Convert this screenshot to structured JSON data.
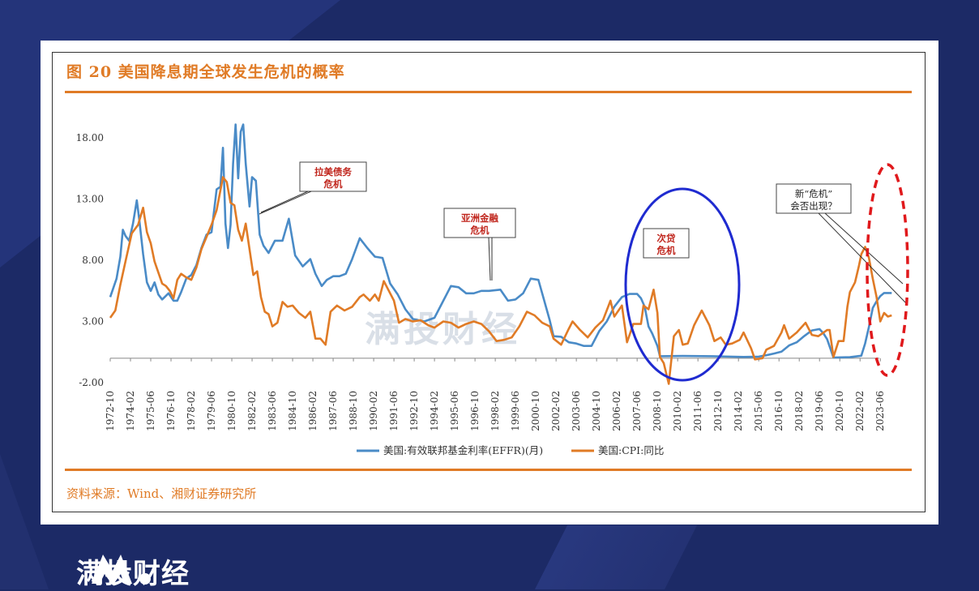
{
  "figure": {
    "title": "图 20 美国降息期全球发生危机的概率",
    "source": "资料来源：Wind、湘财证券研究所",
    "watermark": "满投财经"
  },
  "brand": {
    "name": "满投财经"
  },
  "colors": {
    "effr": "#4a8bc7",
    "cpi": "#e07b26",
    "accent": "#e07b26",
    "circle": "#1f2bd0",
    "dashed": "#e0191c"
  },
  "chart_data": {
    "type": "line",
    "title": "图 20 美国降息期全球发生危机的概率",
    "ylim": [
      -2,
      20
    ],
    "yticks": [
      "18.00",
      "13.00",
      "8.00",
      "3.00",
      "-2.00"
    ],
    "x_tick_labels": [
      "1972-10",
      "1974-02",
      "1975-06",
      "1976-10",
      "1978-02",
      "1979-06",
      "1980-10",
      "1982-02",
      "1983-06",
      "1984-10",
      "1986-02",
      "1987-06",
      "1988-10",
      "1990-02",
      "1991-06",
      "1992-10",
      "1994-02",
      "1995-06",
      "1996-10",
      "1998-02",
      "1999-06",
      "2000-10",
      "2002-02",
      "2003-06",
      "2004-10",
      "2006-02",
      "2007-06",
      "2008-10",
      "2010-02",
      "2011-06",
      "2012-10",
      "2014-02",
      "2015-06",
      "2016-10",
      "2018-02",
      "2019-06",
      "2020-10",
      "2022-02",
      "2023-06"
    ],
    "x_range": [
      "1972-10",
      "2024-06"
    ],
    "series": [
      {
        "name": "美国:有效联邦基金利率(EFFR)(月)",
        "color": "#4a8bc7",
        "points": [
          [
            "1972-10",
            5.0
          ],
          [
            "1973-03",
            6.5
          ],
          [
            "1973-06",
            8.3
          ],
          [
            "1973-08",
            10.5
          ],
          [
            "1973-10",
            10.0
          ],
          [
            "1974-01",
            9.6
          ],
          [
            "1974-04",
            11.0
          ],
          [
            "1974-07",
            12.9
          ],
          [
            "1974-09",
            11.3
          ],
          [
            "1974-12",
            8.5
          ],
          [
            "1975-03",
            6.2
          ],
          [
            "1975-06",
            5.5
          ],
          [
            "1975-09",
            6.2
          ],
          [
            "1975-12",
            5.2
          ],
          [
            "1976-03",
            4.8
          ],
          [
            "1976-08",
            5.3
          ],
          [
            "1976-12",
            4.7
          ],
          [
            "1977-03",
            4.7
          ],
          [
            "1977-06",
            5.4
          ],
          [
            "1977-10",
            6.5
          ],
          [
            "1978-02",
            6.8
          ],
          [
            "1978-06",
            7.6
          ],
          [
            "1978-10",
            9.0
          ],
          [
            "1979-02",
            10.1
          ],
          [
            "1979-06",
            10.3
          ],
          [
            "1979-10",
            13.8
          ],
          [
            "1980-01",
            14.0
          ],
          [
            "1980-03",
            17.2
          ],
          [
            "1980-05",
            11.0
          ],
          [
            "1980-07",
            9.0
          ],
          [
            "1980-09",
            10.9
          ],
          [
            "1980-11",
            15.9
          ],
          [
            "1981-01",
            19.1
          ],
          [
            "1981-03",
            14.7
          ],
          [
            "1981-05",
            18.5
          ],
          [
            "1981-07",
            19.1
          ],
          [
            "1981-09",
            15.9
          ],
          [
            "1981-12",
            12.4
          ],
          [
            "1982-02",
            14.8
          ],
          [
            "1982-05",
            14.5
          ],
          [
            "1982-08",
            10.1
          ],
          [
            "1982-11",
            9.2
          ],
          [
            "1983-03",
            8.6
          ],
          [
            "1983-08",
            9.6
          ],
          [
            "1984-02",
            9.6
          ],
          [
            "1984-07",
            11.4
          ],
          [
            "1984-12",
            8.4
          ],
          [
            "1985-06",
            7.5
          ],
          [
            "1985-12",
            8.1
          ],
          [
            "1986-04",
            6.9
          ],
          [
            "1986-09",
            5.9
          ],
          [
            "1987-01",
            6.4
          ],
          [
            "1987-06",
            6.7
          ],
          [
            "1987-11",
            6.7
          ],
          [
            "1988-04",
            6.9
          ],
          [
            "1988-09",
            8.1
          ],
          [
            "1989-03",
            9.8
          ],
          [
            "1989-09",
            9.0
          ],
          [
            "1990-03",
            8.3
          ],
          [
            "1990-09",
            8.2
          ],
          [
            "1991-03",
            6.1
          ],
          [
            "1991-09",
            5.2
          ],
          [
            "1992-03",
            4.0
          ],
          [
            "1992-09",
            3.2
          ],
          [
            "1993-06",
            3.0
          ],
          [
            "1994-02",
            3.3
          ],
          [
            "1994-08",
            4.5
          ],
          [
            "1995-03",
            5.9
          ],
          [
            "1995-09",
            5.8
          ],
          [
            "1996-03",
            5.3
          ],
          [
            "1996-09",
            5.3
          ],
          [
            "1997-03",
            5.5
          ],
          [
            "1997-09",
            5.5
          ],
          [
            "1998-06",
            5.6
          ],
          [
            "1998-12",
            4.7
          ],
          [
            "1999-06",
            4.8
          ],
          [
            "1999-12",
            5.3
          ],
          [
            "2000-06",
            6.5
          ],
          [
            "2000-12",
            6.4
          ],
          [
            "2001-03",
            5.3
          ],
          [
            "2001-09",
            3.1
          ],
          [
            "2001-12",
            1.8
          ],
          [
            "2002-06",
            1.75
          ],
          [
            "2002-12",
            1.3
          ],
          [
            "2003-06",
            1.2
          ],
          [
            "2003-12",
            1.0
          ],
          [
            "2004-06",
            1.0
          ],
          [
            "2004-12",
            2.2
          ],
          [
            "2005-06",
            3.0
          ],
          [
            "2005-12",
            4.2
          ],
          [
            "2006-06",
            5.0
          ],
          [
            "2006-12",
            5.25
          ],
          [
            "2007-06",
            5.25
          ],
          [
            "2007-09",
            4.9
          ],
          [
            "2007-12",
            4.2
          ],
          [
            "2008-03",
            2.6
          ],
          [
            "2008-06",
            2.0
          ],
          [
            "2008-10",
            1.0
          ],
          [
            "2008-12",
            0.16
          ],
          [
            "2010-06",
            0.18
          ],
          [
            "2012-06",
            0.16
          ],
          [
            "2014-06",
            0.1
          ],
          [
            "2015-06",
            0.13
          ],
          [
            "2015-12",
            0.24
          ],
          [
            "2016-06",
            0.38
          ],
          [
            "2016-12",
            0.54
          ],
          [
            "2017-06",
            1.04
          ],
          [
            "2017-12",
            1.3
          ],
          [
            "2018-06",
            1.82
          ],
          [
            "2018-12",
            2.27
          ],
          [
            "2019-06",
            2.38
          ],
          [
            "2019-09",
            2.04
          ],
          [
            "2019-12",
            1.55
          ],
          [
            "2020-03",
            0.65
          ],
          [
            "2020-05",
            0.05
          ],
          [
            "2021-06",
            0.08
          ],
          [
            "2022-03",
            0.2
          ],
          [
            "2022-06",
            1.21
          ],
          [
            "2022-09",
            2.56
          ],
          [
            "2022-12",
            4.1
          ],
          [
            "2023-03",
            4.65
          ],
          [
            "2023-06",
            5.08
          ],
          [
            "2023-09",
            5.33
          ],
          [
            "2024-03",
            5.33
          ]
        ]
      },
      {
        "name": "美国:CPI:同比",
        "color": "#e07b26",
        "points": [
          [
            "1972-10",
            3.3
          ],
          [
            "1973-02",
            3.9
          ],
          [
            "1973-06",
            6.0
          ],
          [
            "1973-10",
            7.9
          ],
          [
            "1974-03",
            10.2
          ],
          [
            "1974-08",
            10.9
          ],
          [
            "1974-12",
            12.3
          ],
          [
            "1975-03",
            10.3
          ],
          [
            "1975-06",
            9.4
          ],
          [
            "1975-09",
            7.9
          ],
          [
            "1975-12",
            7.0
          ],
          [
            "1976-03",
            6.1
          ],
          [
            "1976-06",
            5.9
          ],
          [
            "1976-09",
            5.5
          ],
          [
            "1976-12",
            4.9
          ],
          [
            "1977-03",
            6.4
          ],
          [
            "1977-06",
            6.9
          ],
          [
            "1977-10",
            6.6
          ],
          [
            "1978-02",
            6.4
          ],
          [
            "1978-06",
            7.4
          ],
          [
            "1978-10",
            8.9
          ],
          [
            "1979-02",
            9.9
          ],
          [
            "1979-06",
            10.9
          ],
          [
            "1979-10",
            12.1
          ],
          [
            "1980-03",
            14.8
          ],
          [
            "1980-06",
            14.4
          ],
          [
            "1980-09",
            12.7
          ],
          [
            "1980-12",
            12.5
          ],
          [
            "1981-03",
            10.5
          ],
          [
            "1981-06",
            9.6
          ],
          [
            "1981-09",
            11.0
          ],
          [
            "1981-12",
            8.9
          ],
          [
            "1982-03",
            6.8
          ],
          [
            "1982-06",
            7.1
          ],
          [
            "1982-09",
            5.0
          ],
          [
            "1982-12",
            3.8
          ],
          [
            "1983-03",
            3.6
          ],
          [
            "1983-06",
            2.6
          ],
          [
            "1983-10",
            2.9
          ],
          [
            "1984-02",
            4.6
          ],
          [
            "1984-06",
            4.2
          ],
          [
            "1984-10",
            4.3
          ],
          [
            "1985-03",
            3.7
          ],
          [
            "1985-08",
            3.3
          ],
          [
            "1985-12",
            3.8
          ],
          [
            "1986-04",
            1.6
          ],
          [
            "1986-08",
            1.6
          ],
          [
            "1986-12",
            1.1
          ],
          [
            "1987-04",
            3.8
          ],
          [
            "1987-09",
            4.3
          ],
          [
            "1988-03",
            3.9
          ],
          [
            "1988-09",
            4.2
          ],
          [
            "1989-03",
            5.0
          ],
          [
            "1989-06",
            5.2
          ],
          [
            "1989-11",
            4.7
          ],
          [
            "1990-03",
            5.2
          ],
          [
            "1990-06",
            4.7
          ],
          [
            "1990-10",
            6.3
          ],
          [
            "1991-01",
            5.7
          ],
          [
            "1991-06",
            4.7
          ],
          [
            "1991-10",
            2.9
          ],
          [
            "1992-03",
            3.2
          ],
          [
            "1992-09",
            3.0
          ],
          [
            "1993-03",
            3.1
          ],
          [
            "1993-09",
            2.7
          ],
          [
            "1994-02",
            2.5
          ],
          [
            "1994-09",
            3.0
          ],
          [
            "1995-03",
            2.9
          ],
          [
            "1995-09",
            2.5
          ],
          [
            "1996-03",
            2.8
          ],
          [
            "1996-09",
            3.0
          ],
          [
            "1997-03",
            2.8
          ],
          [
            "1997-09",
            2.2
          ],
          [
            "1998-03",
            1.4
          ],
          [
            "1998-09",
            1.5
          ],
          [
            "1999-03",
            1.7
          ],
          [
            "1999-09",
            2.6
          ],
          [
            "2000-03",
            3.8
          ],
          [
            "2000-09",
            3.5
          ],
          [
            "2001-03",
            2.9
          ],
          [
            "2001-09",
            2.6
          ],
          [
            "2001-12",
            1.6
          ],
          [
            "2002-06",
            1.1
          ],
          [
            "2002-12",
            2.4
          ],
          [
            "2003-03",
            3.0
          ],
          [
            "2003-09",
            2.3
          ],
          [
            "2004-03",
            1.7
          ],
          [
            "2004-09",
            2.5
          ],
          [
            "2005-03",
            3.1
          ],
          [
            "2005-09",
            4.7
          ],
          [
            "2005-12",
            3.4
          ],
          [
            "2006-06",
            4.3
          ],
          [
            "2006-10",
            1.3
          ],
          [
            "2007-03",
            2.8
          ],
          [
            "2007-09",
            2.8
          ],
          [
            "2007-11",
            4.3
          ],
          [
            "2008-03",
            4.0
          ],
          [
            "2008-07",
            5.6
          ],
          [
            "2008-10",
            3.7
          ],
          [
            "2008-12",
            0.1
          ],
          [
            "2009-03",
            -0.4
          ],
          [
            "2009-07",
            -2.1
          ],
          [
            "2009-11",
            1.8
          ],
          [
            "2010-03",
            2.3
          ],
          [
            "2010-06",
            1.1
          ],
          [
            "2010-10",
            1.2
          ],
          [
            "2011-03",
            2.7
          ],
          [
            "2011-09",
            3.9
          ],
          [
            "2012-03",
            2.7
          ],
          [
            "2012-07",
            1.4
          ],
          [
            "2012-12",
            1.7
          ],
          [
            "2013-04",
            1.1
          ],
          [
            "2013-09",
            1.2
          ],
          [
            "2014-03",
            1.5
          ],
          [
            "2014-06",
            2.1
          ],
          [
            "2014-12",
            0.8
          ],
          [
            "2015-03",
            -0.1
          ],
          [
            "2015-09",
            0.0
          ],
          [
            "2015-12",
            0.7
          ],
          [
            "2016-06",
            1.0
          ],
          [
            "2016-12",
            2.1
          ],
          [
            "2017-02",
            2.7
          ],
          [
            "2017-06",
            1.6
          ],
          [
            "2017-12",
            2.1
          ],
          [
            "2018-07",
            2.9
          ],
          [
            "2018-12",
            1.9
          ],
          [
            "2019-05",
            1.8
          ],
          [
            "2019-12",
            2.3
          ],
          [
            "2020-02",
            2.3
          ],
          [
            "2020-05",
            0.1
          ],
          [
            "2020-09",
            1.4
          ],
          [
            "2021-01",
            1.4
          ],
          [
            "2021-04",
            4.2
          ],
          [
            "2021-06",
            5.4
          ],
          [
            "2021-10",
            6.2
          ],
          [
            "2022-01",
            7.5
          ],
          [
            "2022-03",
            8.5
          ],
          [
            "2022-06",
            9.1
          ],
          [
            "2022-09",
            8.2
          ],
          [
            "2022-12",
            6.5
          ],
          [
            "2023-03",
            5.0
          ],
          [
            "2023-06",
            3.0
          ],
          [
            "2023-09",
            3.7
          ],
          [
            "2023-12",
            3.4
          ],
          [
            "2024-03",
            3.5
          ]
        ]
      }
    ],
    "annotations": [
      {
        "label": "拉美债务\n危机",
        "type": "callout"
      },
      {
        "label": "亚洲金融\n危机",
        "type": "callout"
      },
      {
        "label": "次贷\n危机",
        "type": "callout",
        "highlight": "blue ellipse"
      },
      {
        "label": "新“危机”\n会否出现？",
        "type": "callout",
        "highlight": "red dashed ellipse"
      }
    ],
    "legend_position": "bottom-center",
    "grid": false
  }
}
